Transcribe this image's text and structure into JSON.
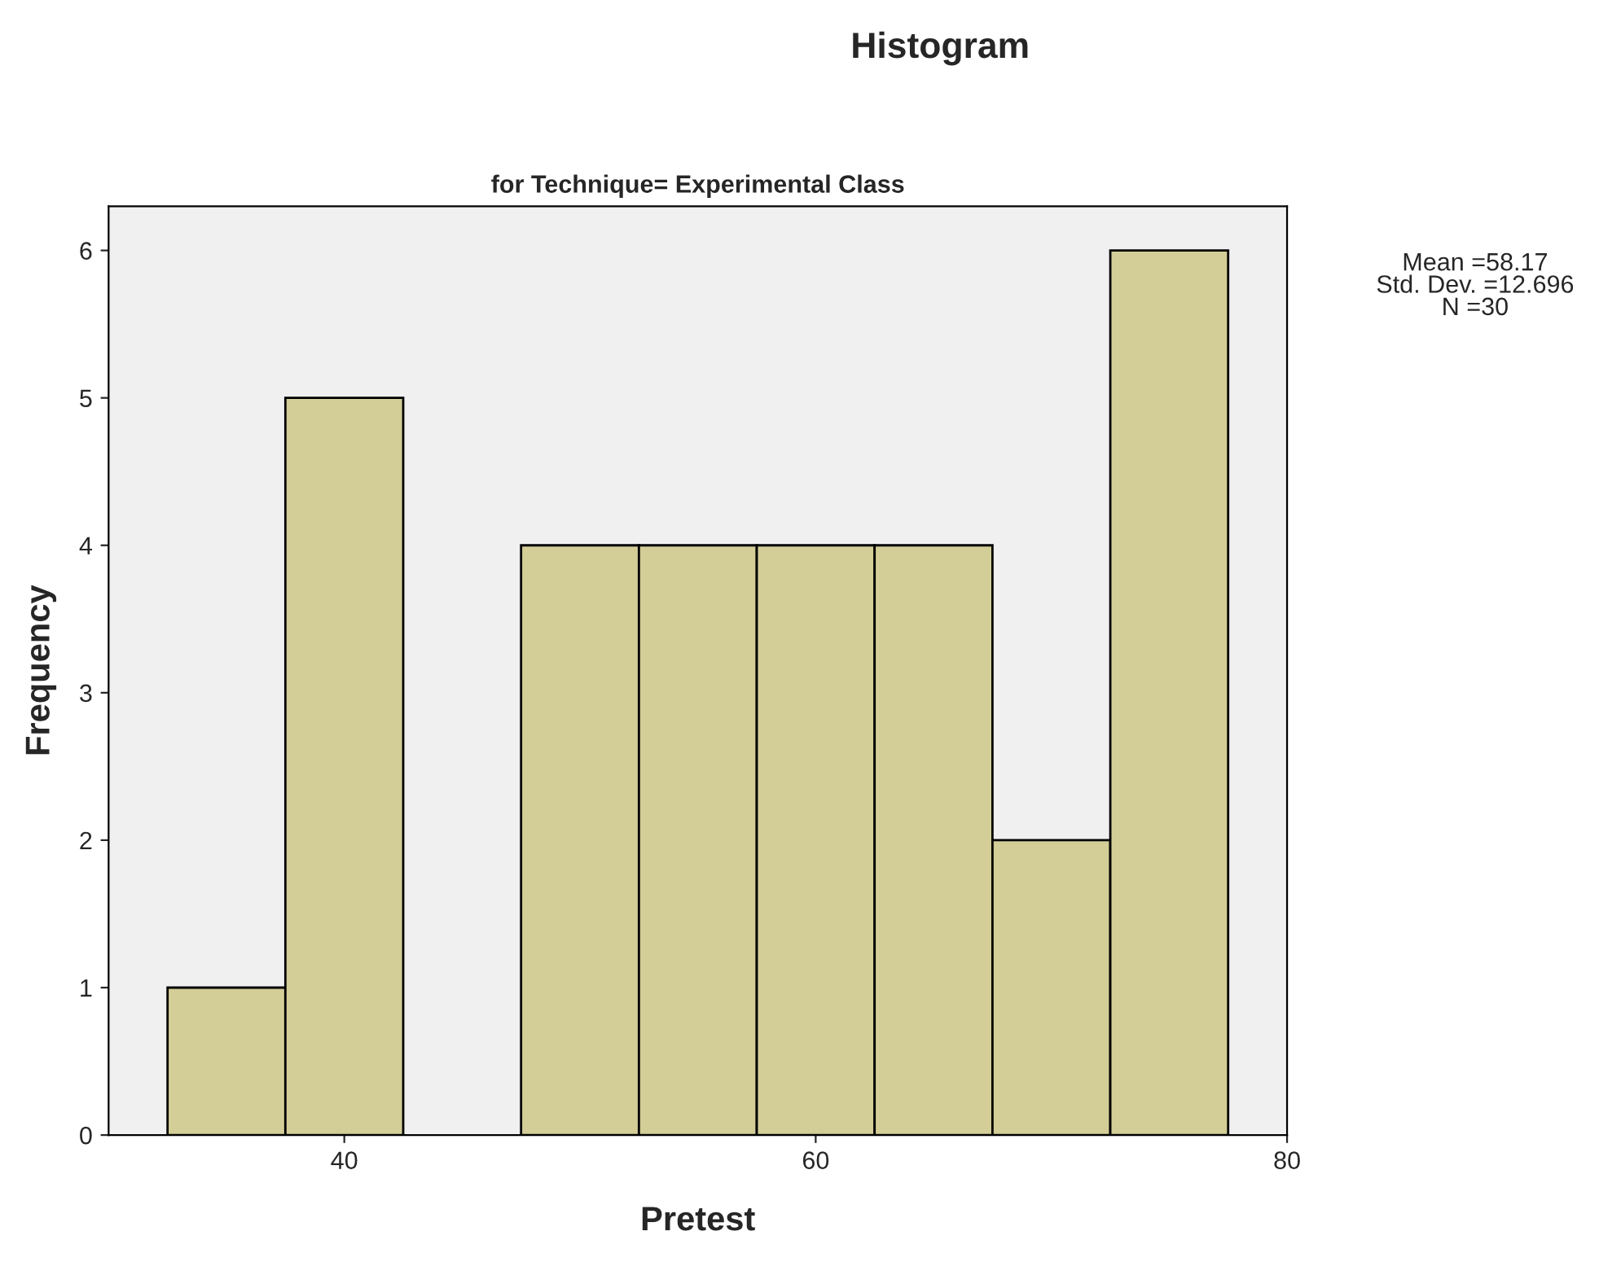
{
  "chart_data": {
    "type": "histogram",
    "title": "Histogram",
    "subtitle": "for Technique= Experimental Class",
    "xlabel": "Pretest",
    "ylabel": "Frequency",
    "bins": [
      32.5,
      37.5,
      42.5,
      47.5,
      52.5,
      57.5,
      62.5,
      67.5,
      72.5,
      77.5
    ],
    "values": [
      1,
      5,
      0,
      4,
      4,
      4,
      4,
      2,
      6
    ],
    "color": "#d3ce97",
    "xlim": [
      30,
      80
    ],
    "xticks": [
      40,
      60,
      80
    ],
    "ylim": [
      0,
      6.3
    ],
    "yticks": [
      0,
      1,
      2,
      3,
      4,
      5,
      6
    ],
    "grid": false,
    "annotations": [
      "Mean =58.17\nStd. Dev. =12.696\nN =30"
    ]
  }
}
